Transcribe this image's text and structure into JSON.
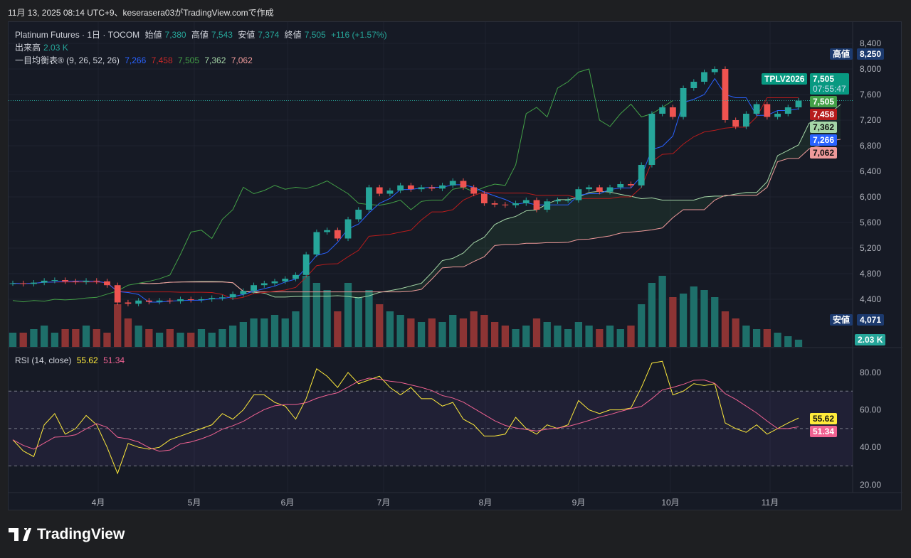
{
  "caption": "11月 13, 2025 08:14 UTC+9、keserasera03がTradingView.comで作成",
  "legend": {
    "symbol": "Platinum Futures · 1日 · TOCOM",
    "open_label": "始値",
    "open": "7,380",
    "high_label": "高値",
    "high": "7,543",
    "low_label": "安値",
    "low": "7,374",
    "close_label": "終値",
    "close": "7,505",
    "change": "+116 (+1.57%)",
    "volume_label": "出来高",
    "volume": "2.03 K",
    "ichimoku_label": "一目均衡表® (9, 26, 52, 26)",
    "tenkan": "7,266",
    "kijun": "7,458",
    "chikou": "7,505",
    "span_a": "7,362",
    "span_b": "7,062",
    "rsi_label": "RSI (14, close)",
    "rsi": "55.62",
    "rsi_ma": "51.34"
  },
  "tags": {
    "high_label": "高値",
    "high": "8,250",
    "low_label": "安値",
    "low": "4,071",
    "symbol": "TPLV2026",
    "last": "7,505",
    "countdown": "07:55:47",
    "chikou": "7,505",
    "kijun": "7,458",
    "span_a": "7,362",
    "tenkan": "7,266",
    "span_b": "7,062",
    "volume": "2.03 K",
    "rsi": "55.62",
    "rsi_ma": "51.34"
  },
  "colors": {
    "up": "#26a69a",
    "down": "#ef5350",
    "tenkan": "#2962ff",
    "kijun": "#b71c1c",
    "chikou": "#43a047",
    "span_a": "#a5d6a7",
    "span_b": "#ef9a9a",
    "rsi": "#ffeb3b",
    "rsi_ma": "#f06292"
  },
  "logo": "TradingView",
  "chart_data": {
    "type": "candlestick",
    "price_axis": {
      "ticks": [
        "8,400",
        "8,000",
        "7,600",
        "7,200",
        "6,800",
        "6,400",
        "6,000",
        "5,600",
        "5,200",
        "4,800",
        "4,400"
      ],
      "range": [
        4000,
        8400
      ]
    },
    "time_axis": {
      "ticks": [
        "4月",
        "5月",
        "6月",
        "7月",
        "8月",
        "9月",
        "10月",
        "11月"
      ]
    },
    "close": [
      4650,
      4640,
      4660,
      4690,
      4700,
      4680,
      4670,
      4690,
      4680,
      4620,
      4350,
      4330,
      4380,
      4360,
      4380,
      4370,
      4400,
      4390,
      4400,
      4420,
      4430,
      4480,
      4530,
      4620,
      4650,
      4680,
      4720,
      4780,
      5100,
      5450,
      5480,
      5350,
      5650,
      5800,
      6150,
      6050,
      6100,
      6180,
      6120,
      6150,
      6130,
      6180,
      6250,
      6150,
      6050,
      5900,
      5880,
      5870,
      5900,
      5950,
      5800,
      5930,
      5950,
      5950,
      6120,
      6150,
      6080,
      6150,
      6200,
      6180,
      6500,
      7300,
      7400,
      7250,
      7700,
      7800,
      7950,
      8000,
      7200,
      7100,
      7300,
      7450,
      7250,
      7300,
      7400,
      7505
    ],
    "volume_k": [
      4,
      4,
      5,
      6,
      4,
      5,
      5,
      6,
      5,
      4,
      12,
      8,
      6,
      5,
      4,
      5,
      4,
      4,
      5,
      4,
      5,
      6,
      7,
      8,
      8,
      9,
      8,
      10,
      20,
      18,
      16,
      10,
      18,
      14,
      16,
      12,
      10,
      9,
      8,
      7,
      8,
      7,
      9,
      8,
      10,
      9,
      7,
      6,
      5,
      6,
      8,
      7,
      6,
      5,
      7,
      6,
      5,
      6,
      5,
      6,
      12,
      18,
      20,
      14,
      15,
      17,
      16,
      14,
      10,
      8,
      6,
      5,
      5,
      4,
      3,
      2.03
    ],
    "rsi": {
      "range": [
        20,
        85
      ],
      "ticks": [
        "80.00",
        "60.00",
        "40.00",
        "20.00"
      ],
      "bands": [
        70,
        50,
        30
      ],
      "values": [
        44,
        38,
        35,
        52,
        58,
        47,
        50,
        57,
        52,
        40,
        26,
        42,
        40,
        39,
        40,
        44,
        46,
        48,
        50,
        52,
        58,
        55,
        60,
        68,
        68,
        64,
        62,
        55,
        66,
        82,
        78,
        72,
        80,
        74,
        76,
        78,
        72,
        68,
        72,
        66,
        66,
        62,
        64,
        55,
        52,
        46,
        46,
        47,
        56,
        50,
        47,
        52,
        50,
        52,
        65,
        60,
        58,
        60,
        60,
        61,
        72,
        85,
        86,
        68,
        70,
        74,
        73,
        74,
        53,
        50,
        48,
        52,
        47,
        50,
        53,
        55.62
      ]
    }
  }
}
